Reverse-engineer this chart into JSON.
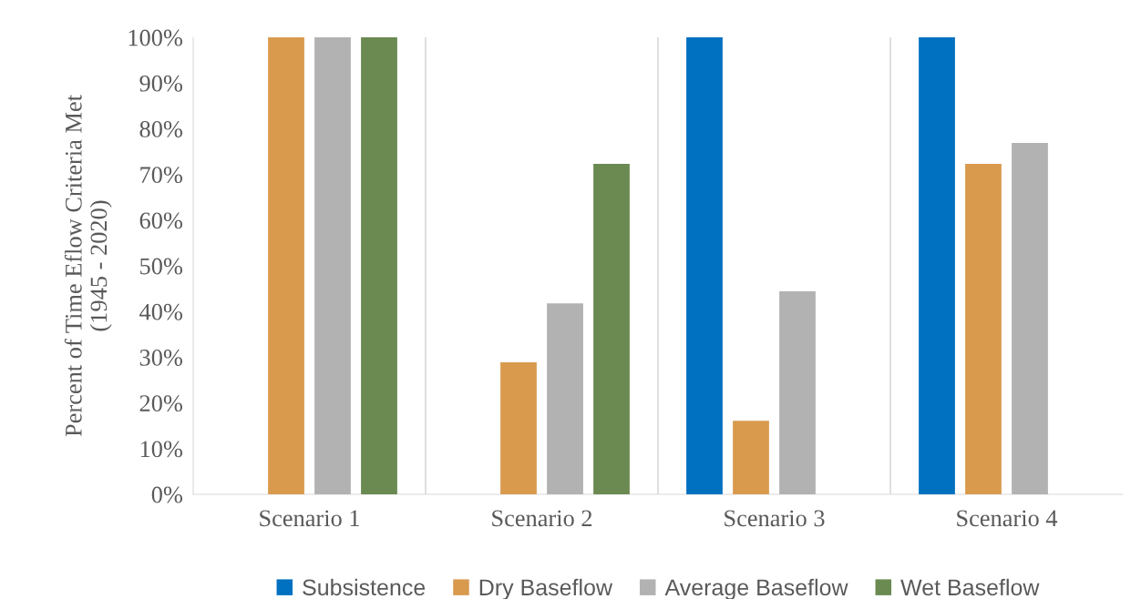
{
  "chart_data": {
    "type": "bar",
    "ylabel": "Percent of Time Eflow Criteria Met\n(1945 - 2020)",
    "categories": [
      "Scenario 1",
      "Scenario 2",
      "Scenario 3",
      "Scenario 4"
    ],
    "series": [
      {
        "name": "Subsistence",
        "color": "#0070c0",
        "values": [
          0,
          0,
          100,
          100
        ]
      },
      {
        "name": "Dry Baseflow",
        "color": "#d99a4e",
        "values": [
          100,
          28.9,
          16.1,
          72.3
        ]
      },
      {
        "name": "Average Baseflow",
        "color": "#b2b2b2",
        "values": [
          100,
          41.8,
          44.4,
          76.9
        ]
      },
      {
        "name": "Wet Baseflow",
        "color": "#6a8a51",
        "values": [
          100,
          72.3,
          0,
          0
        ]
      }
    ],
    "ylim": [
      0,
      100
    ],
    "yticks": [
      {
        "value": 0,
        "label": "0%"
      },
      {
        "value": 10,
        "label": "10%"
      },
      {
        "value": 20,
        "label": "20%"
      },
      {
        "value": 30,
        "label": "30%"
      },
      {
        "value": 40,
        "label": "40%"
      },
      {
        "value": 50,
        "label": "50%"
      },
      {
        "value": 60,
        "label": "60%"
      },
      {
        "value": 70,
        "label": "70%"
      },
      {
        "value": 80,
        "label": "80%"
      },
      {
        "value": 90,
        "label": "90%"
      },
      {
        "value": 100,
        "label": "100%"
      }
    ],
    "grid": "x",
    "legend": "bottom"
  }
}
